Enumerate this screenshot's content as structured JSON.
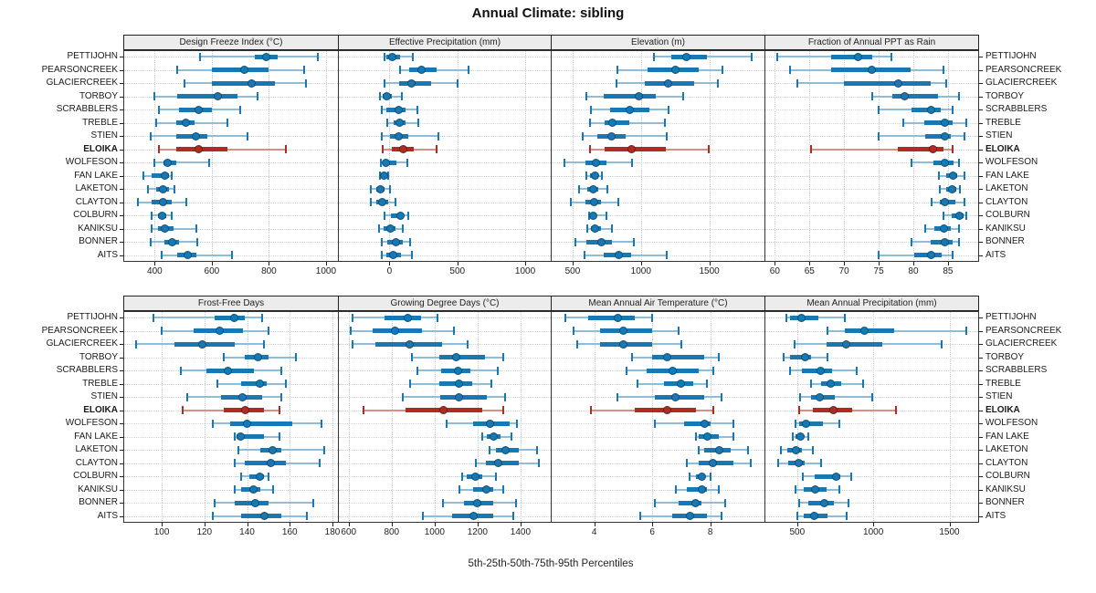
{
  "title": "Annual Climate: sibling",
  "caption": "5th-25th-50th-75th-95th Percentiles",
  "chart_data": {
    "type": "dotplot",
    "percentiles": [
      5,
      25,
      50,
      75,
      95
    ],
    "stations": [
      "PETTIJOHN",
      "PEARSONCREEK",
      "GLACIERCREEK",
      "TORBOY",
      "SCRABBLERS",
      "TREBLE",
      "STIEN",
      "ELOIKA",
      "WOLFESON",
      "FAN LAKE",
      "LAKETON",
      "CLAYTON",
      "COLBURN",
      "KANIKSU",
      "BONNER",
      "AITS"
    ],
    "highlight_station": "ELOIKA",
    "colors": {
      "normal": "#1878b4",
      "normal_light": "#8fbcd9",
      "highlight": "#b02b24",
      "highlight_light": "#d98f86"
    },
    "panels": [
      {
        "title": "Design Freeze Index (°C)",
        "xlim": [
          290,
          1045
        ],
        "ticks": [
          400,
          600,
          800,
          1000
        ],
        "values": [
          [
            560,
            750,
            790,
            830,
            970
          ],
          [
            480,
            600,
            715,
            800,
            925
          ],
          [
            505,
            600,
            740,
            820,
            930
          ],
          [
            400,
            480,
            620,
            690,
            760
          ],
          [
            415,
            485,
            555,
            600,
            700
          ],
          [
            405,
            475,
            510,
            540,
            655
          ],
          [
            385,
            475,
            545,
            585,
            725
          ],
          [
            415,
            475,
            555,
            655,
            860
          ],
          [
            400,
            430,
            445,
            475,
            590
          ],
          [
            360,
            390,
            435,
            450,
            460
          ],
          [
            375,
            405,
            430,
            450,
            470
          ],
          [
            340,
            390,
            430,
            460,
            510
          ],
          [
            390,
            410,
            425,
            440,
            460
          ],
          [
            390,
            410,
            435,
            465,
            545
          ],
          [
            385,
            435,
            460,
            485,
            550
          ],
          [
            425,
            480,
            515,
            545,
            670
          ]
        ]
      },
      {
        "title": "Effective Precipitation (mm)",
        "xlim": [
          -380,
          1195
        ],
        "ticks": [
          0,
          500,
          1000
        ],
        "values": [
          [
            -40,
            -20,
            20,
            75,
            175
          ],
          [
            75,
            145,
            235,
            350,
            580
          ],
          [
            -35,
            70,
            165,
            305,
            505
          ],
          [
            -70,
            -50,
            -20,
            20,
            90
          ],
          [
            -60,
            -25,
            65,
            115,
            205
          ],
          [
            -15,
            30,
            75,
            120,
            215
          ],
          [
            -55,
            5,
            65,
            135,
            360
          ],
          [
            -50,
            20,
            100,
            180,
            350
          ],
          [
            -65,
            -40,
            -25,
            50,
            130
          ],
          [
            -70,
            -50,
            -40,
            -20,
            -10
          ],
          [
            -135,
            -100,
            -70,
            -35,
            5
          ],
          [
            -140,
            -100,
            -55,
            -10,
            45
          ],
          [
            -35,
            10,
            80,
            105,
            135
          ],
          [
            -80,
            -45,
            5,
            45,
            95
          ],
          [
            -60,
            -15,
            50,
            95,
            150
          ],
          [
            -55,
            -20,
            25,
            85,
            165
          ]
        ]
      },
      {
        "title": "Elevation (m)",
        "xlim": [
          340,
          1910
        ],
        "ticks": [
          500,
          1000,
          1500
        ],
        "values": [
          [
            1095,
            1225,
            1335,
            1480,
            1810
          ],
          [
            830,
            1045,
            1250,
            1420,
            1595
          ],
          [
            820,
            1025,
            1200,
            1390,
            1560
          ],
          [
            600,
            730,
            985,
            1110,
            1310
          ],
          [
            635,
            775,
            915,
            1060,
            1205
          ],
          [
            625,
            735,
            790,
            915,
            1175
          ],
          [
            575,
            680,
            785,
            885,
            1190
          ],
          [
            625,
            735,
            930,
            1185,
            1495
          ],
          [
            440,
            595,
            670,
            745,
            935
          ],
          [
            600,
            625,
            665,
            690,
            715
          ],
          [
            550,
            605,
            650,
            690,
            755
          ],
          [
            485,
            595,
            655,
            710,
            835
          ],
          [
            620,
            635,
            650,
            670,
            745
          ],
          [
            605,
            635,
            665,
            710,
            785
          ],
          [
            520,
            600,
            710,
            790,
            945
          ],
          [
            590,
            725,
            835,
            925,
            1190
          ]
        ]
      },
      {
        "title": "Fraction of Annual PPT as Rain",
        "xlim": [
          58.5,
          89.5
        ],
        "ticks": [
          60,
          65,
          70,
          75,
          80,
          85
        ],
        "values": [
          [
            60.3,
            68.1,
            72.0,
            74.1,
            76.9
          ],
          [
            62.2,
            68.1,
            74.0,
            79.6,
            84.4
          ],
          [
            63.2,
            70.0,
            77.8,
            82.5,
            84.8
          ],
          [
            74.0,
            77.0,
            78.8,
            83.6,
            86.6
          ],
          [
            75.0,
            79.7,
            82.6,
            84.0,
            85.7
          ],
          [
            78.6,
            81.6,
            84.5,
            85.7,
            87.6
          ],
          [
            75.0,
            81.7,
            84.5,
            85.4,
            87.4
          ],
          [
            65.2,
            77.8,
            82.8,
            84.4,
            85.7
          ],
          [
            79.7,
            82.9,
            84.5,
            85.8,
            86.6
          ],
          [
            83.7,
            84.7,
            85.7,
            86.4,
            87.4
          ],
          [
            83.8,
            84.8,
            85.6,
            86.2,
            86.7
          ],
          [
            82.6,
            83.8,
            84.5,
            86.1,
            87.4
          ],
          [
            84.4,
            85.6,
            86.6,
            87.2,
            87.6
          ],
          [
            81.7,
            83.0,
            84.4,
            85.4,
            86.6
          ],
          [
            79.7,
            82.5,
            84.5,
            85.7,
            86.6
          ],
          [
            75.0,
            80.1,
            82.6,
            84.1,
            85.7
          ]
        ]
      },
      {
        "title": "Frost-Free Days",
        "xlim": [
          82,
          183
        ],
        "ticks": [
          100,
          120,
          140,
          160,
          180
        ],
        "values": [
          [
            96,
            125,
            134,
            139,
            147
          ],
          [
            100,
            115,
            127,
            138,
            150
          ],
          [
            88,
            106,
            119,
            134,
            148
          ],
          [
            129,
            139,
            145,
            150,
            163
          ],
          [
            109,
            121,
            131,
            143,
            156
          ],
          [
            126,
            137,
            146,
            149,
            158
          ],
          [
            112,
            128,
            138,
            147,
            156
          ],
          [
            110,
            129,
            139,
            148,
            155
          ],
          [
            124,
            132,
            140,
            161,
            175
          ],
          [
            134,
            135,
            137,
            148,
            155
          ],
          [
            136,
            146,
            152,
            156,
            176
          ],
          [
            134,
            139,
            151,
            158,
            174
          ],
          [
            137,
            141,
            146,
            148,
            150
          ],
          [
            134,
            137,
            143,
            146,
            152
          ],
          [
            125,
            134,
            144,
            150,
            171
          ],
          [
            124,
            137,
            148,
            156,
            168
          ]
        ]
      },
      {
        "title": "Growing Degree Days (°C)",
        "xlim": [
          550,
          1545
        ],
        "ticks": [
          600,
          800,
          1000,
          1200,
          1400
        ],
        "values": [
          [
            620,
            765,
            875,
            935,
            1015
          ],
          [
            610,
            710,
            815,
            940,
            1090
          ],
          [
            620,
            725,
            885,
            1035,
            1155
          ],
          [
            895,
            1020,
            1100,
            1235,
            1320
          ],
          [
            920,
            1030,
            1110,
            1165,
            1295
          ],
          [
            885,
            1020,
            1115,
            1175,
            1265
          ],
          [
            850,
            1025,
            1115,
            1245,
            1330
          ],
          [
            670,
            865,
            1040,
            1220,
            1320
          ],
          [
            1055,
            1180,
            1260,
            1350,
            1385
          ],
          [
            1220,
            1245,
            1275,
            1305,
            1360
          ],
          [
            1255,
            1285,
            1330,
            1390,
            1475
          ],
          [
            1190,
            1240,
            1295,
            1390,
            1485
          ],
          [
            1130,
            1150,
            1190,
            1220,
            1285
          ],
          [
            1115,
            1180,
            1240,
            1275,
            1320
          ],
          [
            1040,
            1135,
            1200,
            1275,
            1380
          ],
          [
            945,
            1080,
            1180,
            1275,
            1365
          ]
        ]
      },
      {
        "title": "Mean Annual Air Temperature (°C)",
        "xlim": [
          2.5,
          9.9
        ],
        "ticks": [
          4,
          6,
          8
        ],
        "values": [
          [
            3.0,
            3.8,
            4.8,
            5.4,
            6.0
          ],
          [
            3.3,
            4.2,
            5.0,
            6.0,
            6.9
          ],
          [
            3.4,
            4.2,
            5.0,
            6.0,
            7.0
          ],
          [
            5.3,
            6.0,
            6.5,
            7.8,
            8.3
          ],
          [
            5.1,
            5.8,
            6.7,
            7.6,
            8.1
          ],
          [
            5.5,
            6.4,
            7.0,
            7.4,
            7.9
          ],
          [
            4.8,
            6.1,
            6.8,
            7.8,
            8.4
          ],
          [
            3.9,
            5.4,
            6.5,
            7.5,
            8.1
          ],
          [
            6.1,
            7.1,
            7.8,
            8.0,
            8.8
          ],
          [
            7.5,
            7.6,
            7.9,
            8.3,
            8.8
          ],
          [
            7.6,
            7.8,
            8.3,
            8.7,
            9.3
          ],
          [
            7.2,
            7.6,
            8.1,
            8.8,
            9.4
          ],
          [
            7.3,
            7.5,
            7.7,
            7.8,
            8.0
          ],
          [
            6.8,
            7.2,
            7.7,
            7.9,
            8.3
          ],
          [
            6.1,
            6.9,
            7.5,
            7.7,
            8.5
          ],
          [
            5.6,
            6.7,
            7.3,
            7.9,
            8.4
          ]
        ]
      },
      {
        "title": "Mean Annual Precipitation (mm)",
        "xlim": [
          285,
          1695
        ],
        "ticks": [
          500,
          1000,
          1500
        ],
        "values": [
          [
            430,
            455,
            530,
            640,
            810
          ],
          [
            700,
            815,
            940,
            1140,
            1610
          ],
          [
            480,
            690,
            820,
            1060,
            1450
          ],
          [
            410,
            450,
            550,
            590,
            700
          ],
          [
            455,
            530,
            655,
            730,
            890
          ],
          [
            590,
            655,
            720,
            790,
            930
          ],
          [
            520,
            590,
            650,
            750,
            990
          ],
          [
            510,
            600,
            740,
            860,
            1150
          ],
          [
            490,
            510,
            560,
            670,
            775
          ],
          [
            470,
            490,
            520,
            540,
            575
          ],
          [
            390,
            435,
            490,
            530,
            600
          ],
          [
            375,
            440,
            510,
            550,
            655
          ],
          [
            535,
            615,
            755,
            780,
            855
          ],
          [
            490,
            540,
            620,
            690,
            775
          ],
          [
            510,
            570,
            680,
            740,
            835
          ],
          [
            500,
            540,
            610,
            700,
            825
          ]
        ]
      }
    ]
  }
}
